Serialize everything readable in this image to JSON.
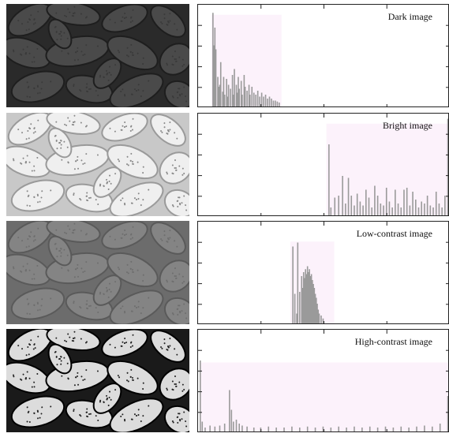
{
  "chart_data": [
    {
      "type": "bar",
      "title": "Dark image",
      "xlim": [
        0,
        255
      ],
      "values": [
        0,
        0,
        0,
        0,
        0,
        0,
        0,
        0,
        0,
        0,
        0,
        0,
        0,
        0,
        0,
        0,
        0,
        0,
        0,
        0,
        0,
        0,
        0,
        0,
        0,
        0,
        0,
        0,
        0,
        0,
        0,
        0,
        0,
        0,
        0,
        0,
        0,
        0,
        0,
        0,
        0,
        0,
        0,
        0,
        0,
        0,
        0,
        0,
        0,
        0,
        0,
        0,
        0,
        0,
        0,
        0,
        0,
        0,
        0,
        0,
        0,
        0,
        0,
        0,
        0,
        0,
        0,
        0,
        0,
        0,
        0,
        0,
        0,
        0,
        0,
        0,
        0,
        0,
        0,
        0,
        0,
        0,
        0,
        0,
        0,
        0,
        0,
        0,
        0,
        0,
        0,
        0,
        0,
        0,
        0,
        0,
        0,
        0,
        0,
        0,
        0,
        0,
        0,
        0,
        0,
        0,
        0,
        0,
        0,
        0,
        0,
        0,
        0,
        0,
        0,
        0,
        0,
        0,
        0,
        0,
        0,
        0,
        0,
        0,
        0,
        0,
        0,
        0,
        0,
        0,
        0,
        0,
        0,
        0,
        0,
        0,
        0,
        0,
        0,
        0,
        0,
        0,
        0,
        0,
        0,
        0,
        0,
        0,
        0,
        0,
        0,
        0,
        0,
        0,
        0,
        0,
        0,
        0,
        0,
        0,
        0,
        0,
        0,
        0,
        0,
        0,
        0,
        0,
        0,
        0,
        0,
        0,
        0,
        0,
        0,
        0,
        0,
        0,
        0,
        0,
        0,
        0,
        0,
        0,
        0,
        0,
        0,
        0,
        0,
        0,
        0,
        0,
        0,
        0,
        0,
        0,
        0,
        0,
        0,
        0,
        0,
        0,
        0,
        0,
        0,
        0,
        0,
        0,
        0,
        0,
        0,
        0,
        0,
        0,
        0,
        0,
        0,
        0,
        0,
        0,
        0,
        0,
        0,
        0,
        0,
        0,
        0,
        0,
        0,
        0,
        0,
        0,
        0,
        0,
        0,
        0,
        0,
        0,
        0,
        0,
        0,
        0,
        0,
        0,
        0,
        0,
        0,
        0,
        0,
        0,
        0,
        0,
        0,
        0,
        0,
        0
      ],
      "peaks": [
        [
          13,
          0.95
        ],
        [
          14,
          0.62
        ],
        [
          15,
          0.8
        ],
        [
          16,
          0.58
        ],
        [
          18,
          0.3
        ],
        [
          19,
          0.2
        ],
        [
          20,
          0.22
        ],
        [
          21,
          0.45
        ],
        [
          23,
          0.15
        ],
        [
          24,
          0.3
        ],
        [
          25,
          0.12
        ],
        [
          27,
          0.28
        ],
        [
          28,
          0.1
        ],
        [
          29,
          0.22
        ],
        [
          31,
          0.18
        ],
        [
          33,
          0.32
        ],
        [
          34,
          0.12
        ],
        [
          35,
          0.38
        ],
        [
          37,
          0.22
        ],
        [
          38,
          0.14
        ],
        [
          39,
          0.3
        ],
        [
          40,
          0.18
        ],
        [
          42,
          0.26
        ],
        [
          43,
          0.12
        ],
        [
          45,
          0.32
        ],
        [
          46,
          0.2
        ],
        [
          48,
          0.16
        ],
        [
          50,
          0.22
        ],
        [
          51,
          0.12
        ],
        [
          53,
          0.2
        ],
        [
          55,
          0.14
        ],
        [
          57,
          0.12
        ],
        [
          59,
          0.16
        ],
        [
          61,
          0.1
        ],
        [
          63,
          0.14
        ],
        [
          65,
          0.1
        ],
        [
          67,
          0.12
        ],
        [
          69,
          0.08
        ],
        [
          71,
          0.1
        ],
        [
          73,
          0.08
        ],
        [
          75,
          0.06
        ],
        [
          77,
          0.06
        ],
        [
          79,
          0.05
        ],
        [
          81,
          0.04
        ]
      ],
      "band": [
        12,
        84
      ],
      "band_height": 0.93
    },
    {
      "type": "bar",
      "title": "Bright image",
      "xlim": [
        0,
        255
      ],
      "peaks": [
        [
          132,
          0.72
        ],
        [
          134,
          0.08
        ],
        [
          138,
          0.18
        ],
        [
          142,
          0.2
        ],
        [
          146,
          0.4
        ],
        [
          149,
          0.12
        ],
        [
          152,
          0.38
        ],
        [
          155,
          0.2
        ],
        [
          158,
          0.1
        ],
        [
          161,
          0.22
        ],
        [
          164,
          0.14
        ],
        [
          167,
          0.1
        ],
        [
          170,
          0.26
        ],
        [
          173,
          0.18
        ],
        [
          176,
          0.08
        ],
        [
          179,
          0.3
        ],
        [
          182,
          0.2
        ],
        [
          185,
          0.12
        ],
        [
          188,
          0.1
        ],
        [
          191,
          0.28
        ],
        [
          194,
          0.14
        ],
        [
          197,
          0.08
        ],
        [
          200,
          0.26
        ],
        [
          203,
          0.12
        ],
        [
          206,
          0.08
        ],
        [
          209,
          0.26
        ],
        [
          212,
          0.28
        ],
        [
          215,
          0.1
        ],
        [
          218,
          0.24
        ],
        [
          221,
          0.16
        ],
        [
          224,
          0.08
        ],
        [
          227,
          0.14
        ],
        [
          230,
          0.12
        ],
        [
          233,
          0.2
        ],
        [
          236,
          0.1
        ],
        [
          239,
          0.08
        ],
        [
          242,
          0.24
        ],
        [
          245,
          0.12
        ],
        [
          248,
          0.08
        ],
        [
          251,
          0.2
        ],
        [
          254,
          0.98
        ]
      ],
      "band": [
        130,
        255
      ],
      "band_height": 0.93
    },
    {
      "type": "bar",
      "title": "Low-contrast image",
      "xlim": [
        0,
        255
      ],
      "peaks": [
        [
          95,
          0.78
        ],
        [
          97,
          0.3
        ],
        [
          99,
          0.1
        ],
        [
          100,
          0.82
        ],
        [
          102,
          0.32
        ],
        [
          104,
          0.48
        ],
        [
          105,
          0.36
        ],
        [
          106,
          0.52
        ],
        [
          107,
          0.46
        ],
        [
          108,
          0.55
        ],
        [
          109,
          0.5
        ],
        [
          110,
          0.58
        ],
        [
          111,
          0.52
        ],
        [
          112,
          0.55
        ],
        [
          113,
          0.48
        ],
        [
          114,
          0.5
        ],
        [
          115,
          0.44
        ],
        [
          116,
          0.4
        ],
        [
          117,
          0.36
        ],
        [
          118,
          0.3
        ],
        [
          119,
          0.26
        ],
        [
          120,
          0.2
        ],
        [
          121,
          0.14
        ],
        [
          122,
          0.1
        ],
        [
          124,
          0.08
        ],
        [
          126,
          0.05
        ]
      ],
      "band": [
        93,
        138
      ],
      "band_height": 0.83
    },
    {
      "type": "bar",
      "title": "High-contrast image",
      "xlim": [
        0,
        255
      ],
      "peaks": [
        [
          0,
          0.72
        ],
        [
          2,
          0.1
        ],
        [
          5,
          0.04
        ],
        [
          10,
          0.06
        ],
        [
          15,
          0.05
        ],
        [
          20,
          0.06
        ],
        [
          25,
          0.08
        ],
        [
          30,
          0.42
        ],
        [
          32,
          0.22
        ],
        [
          34,
          0.1
        ],
        [
          37,
          0.12
        ],
        [
          40,
          0.08
        ],
        [
          43,
          0.06
        ],
        [
          48,
          0.05
        ],
        [
          55,
          0.04
        ],
        [
          62,
          0.04
        ],
        [
          70,
          0.05
        ],
        [
          78,
          0.04
        ],
        [
          86,
          0.04
        ],
        [
          94,
          0.05
        ],
        [
          102,
          0.04
        ],
        [
          110,
          0.05
        ],
        [
          118,
          0.04
        ],
        [
          126,
          0.05
        ],
        [
          134,
          0.04
        ],
        [
          142,
          0.05
        ],
        [
          150,
          0.04
        ],
        [
          158,
          0.05
        ],
        [
          166,
          0.04
        ],
        [
          174,
          0.05
        ],
        [
          182,
          0.04
        ],
        [
          190,
          0.05
        ],
        [
          198,
          0.04
        ],
        [
          206,
          0.05
        ],
        [
          214,
          0.04
        ],
        [
          222,
          0.05
        ],
        [
          230,
          0.06
        ],
        [
          238,
          0.05
        ],
        [
          246,
          0.08
        ],
        [
          254,
          0.36
        ]
      ],
      "band": [
        0,
        255
      ],
      "band_height": 0.7
    }
  ],
  "colors": {
    "bar": "#9a9a9a",
    "band": "#fcf2fb",
    "frame": "#222222"
  },
  "photos": [
    {
      "brightness": "dark",
      "bg": "#2a2a2a",
      "bean": "#4a4a4a",
      "bean_edge": "#1e1e1e",
      "dots": "#3a3a3a"
    },
    {
      "brightness": "bright",
      "bg": "#c8c8c8",
      "bean": "#efefef",
      "bean_edge": "#9a9a9a",
      "dots": "#888888"
    },
    {
      "brightness": "low-contrast",
      "bg": "#6c6c6c",
      "bean": "#848484",
      "bean_edge": "#5a5a5a",
      "dots": "#6e6e6e"
    },
    {
      "brightness": "high-contrast",
      "bg": "#1a1a1a",
      "bean": "#dcdcdc",
      "bean_edge": "#000000",
      "dots": "#222222"
    }
  ]
}
